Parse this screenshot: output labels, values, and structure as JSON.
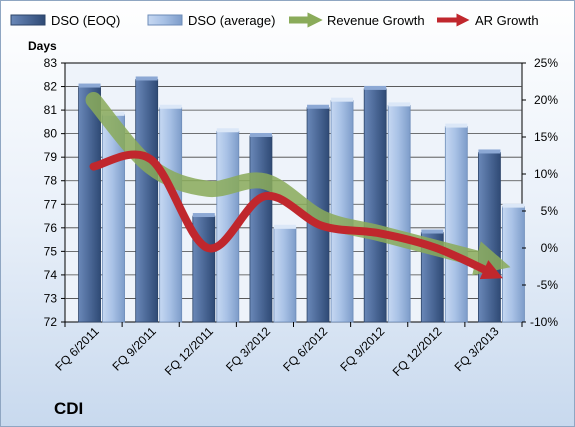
{
  "company": "CDI",
  "chart_data": {
    "type": "bar",
    "categories": [
      "FQ 6/2011",
      "FQ 9/2011",
      "FQ 12/2011",
      "FQ 3/2012",
      "FQ 6/2012",
      "FQ 9/2012",
      "FQ 12/2012",
      "FQ 3/2013"
    ],
    "ylabel": "Days",
    "ylim": [
      72,
      83
    ],
    "y_ticks": [
      "72",
      "73",
      "74",
      "75",
      "76",
      "77",
      "78",
      "79",
      "80",
      "81",
      "82",
      "83"
    ],
    "y2lim": [
      -10,
      25
    ],
    "y2_ticks": [
      "-10%",
      "-5%",
      "0%",
      "5%",
      "10%",
      "15%",
      "20%",
      "25%"
    ],
    "legend_position": "top",
    "series": [
      {
        "name": "DSO (EOQ)",
        "type": "bar",
        "color": "#4f6c9b",
        "values": [
          82.0,
          82.3,
          76.5,
          79.9,
          81.1,
          81.9,
          75.8,
          79.2
        ]
      },
      {
        "name": "DSO (average)",
        "type": "bar",
        "color": "#a9c2e6",
        "values": [
          80.8,
          81.1,
          80.1,
          76.0,
          81.4,
          81.2,
          80.3,
          76.9
        ]
      },
      {
        "name": "Revenue Growth",
        "type": "line",
        "axis": "right",
        "unit": "%",
        "color": "#8aab5a",
        "values": [
          20,
          11,
          8,
          9,
          4,
          2,
          0,
          -2
        ]
      },
      {
        "name": "AR Growth",
        "type": "line",
        "axis": "right",
        "unit": "%",
        "color": "#c0272d",
        "values": [
          11,
          12,
          0,
          7,
          3,
          2,
          0,
          -3.5
        ]
      }
    ]
  }
}
